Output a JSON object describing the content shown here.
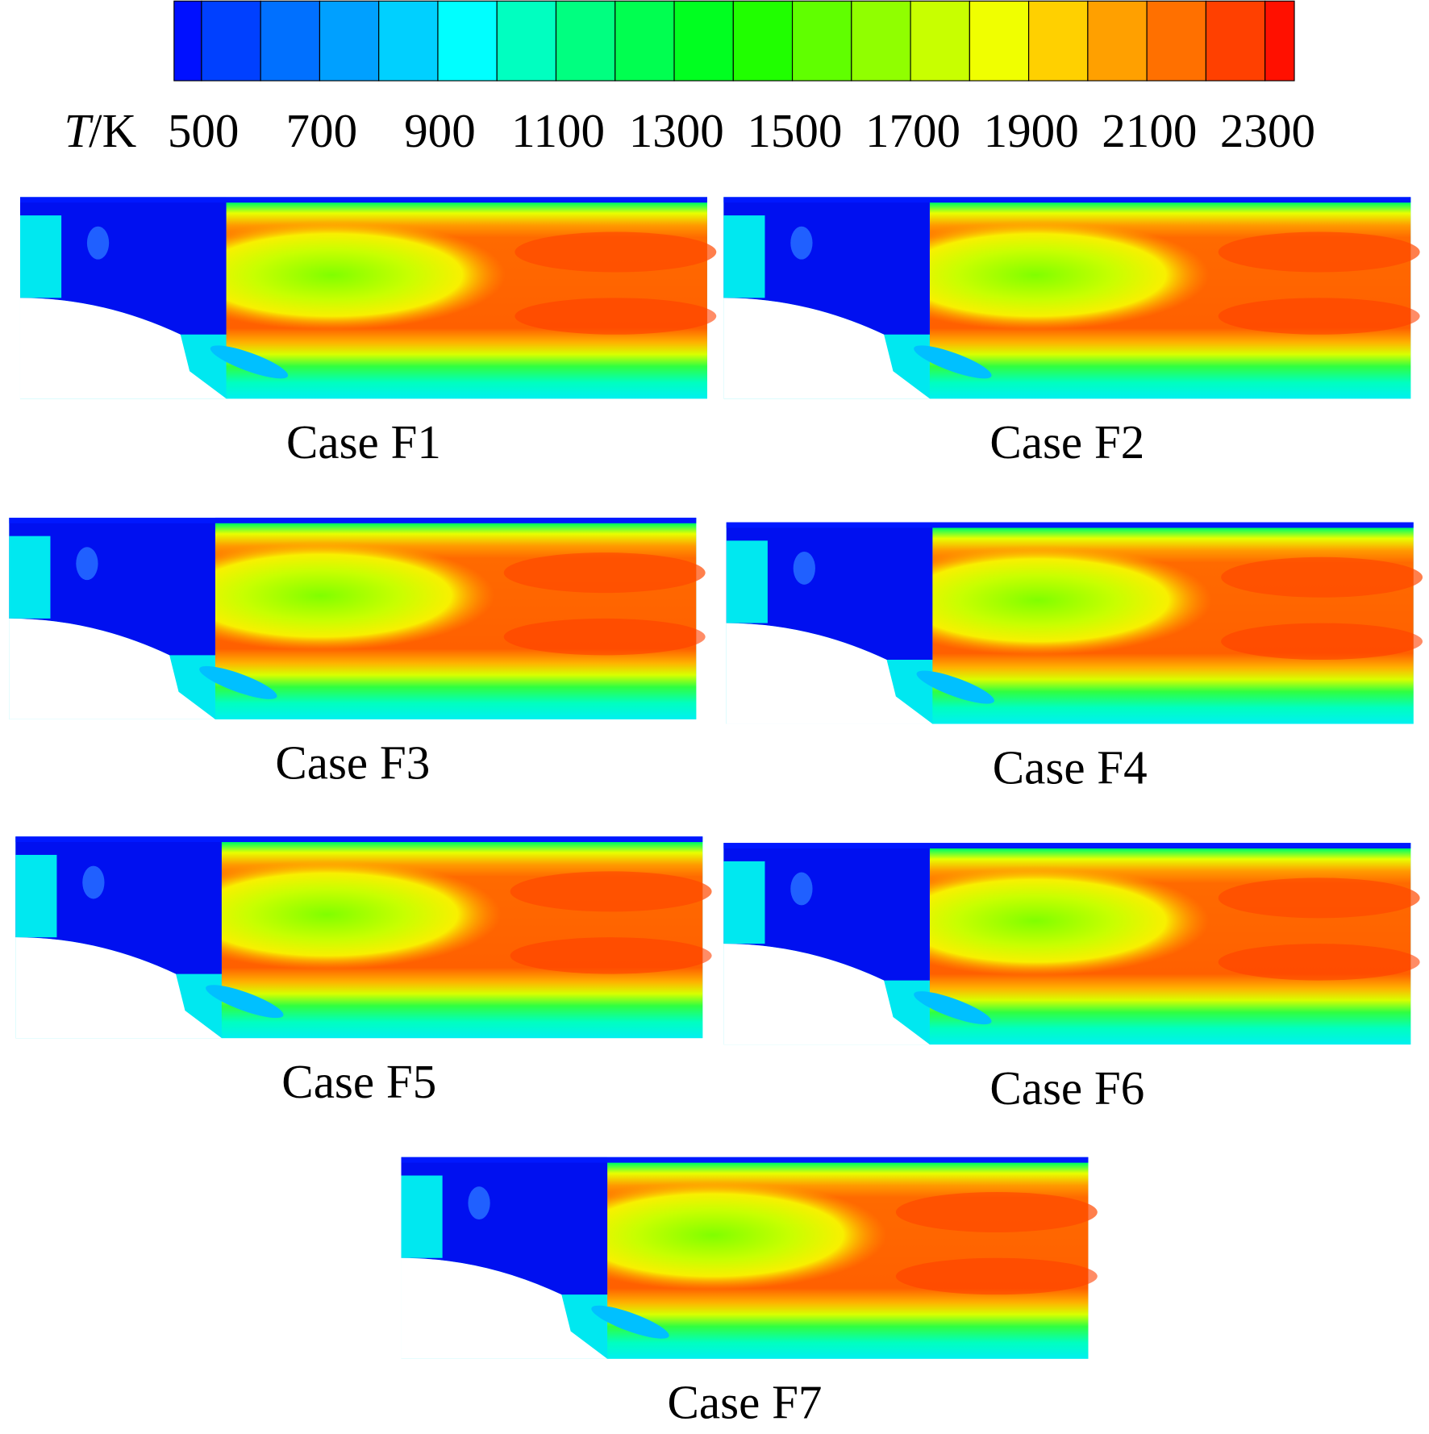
{
  "colorbar": {
    "symbol": "T",
    "unit": "/K",
    "ticks": [
      500,
      700,
      900,
      1100,
      1300,
      1500,
      1700,
      1900,
      2100,
      2300
    ]
  },
  "panels": [
    {
      "caption": "Case F1"
    },
    {
      "caption": "Case F2"
    },
    {
      "caption": "Case F3"
    },
    {
      "caption": "Case F4"
    },
    {
      "caption": "Case F5"
    },
    {
      "caption": "Case F6"
    },
    {
      "caption": "Case F7"
    }
  ]
}
